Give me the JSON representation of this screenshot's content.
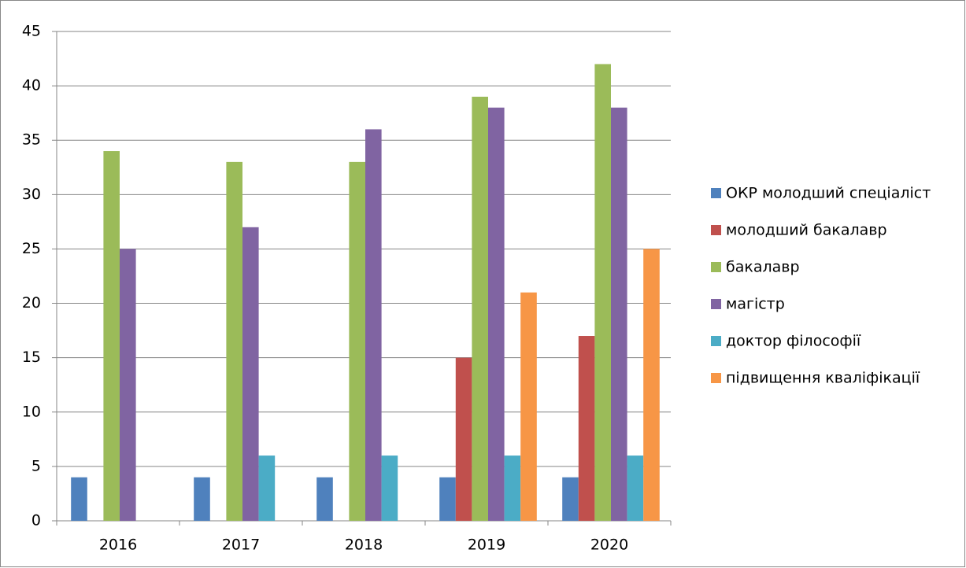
{
  "chart_data": {
    "type": "bar",
    "categories": [
      "2016",
      "2017",
      "2018",
      "2019",
      "2020"
    ],
    "series": [
      {
        "name": "ОКР молодший спеціаліст",
        "color": "#4f81bd",
        "values": [
          4,
          4,
          4,
          4,
          4
        ]
      },
      {
        "name": "молодший бакалавр",
        "color": "#c0504d",
        "values": [
          0,
          0,
          0,
          15,
          17
        ]
      },
      {
        "name": "бакалавр",
        "color": "#9bbb59",
        "values": [
          34,
          33,
          33,
          39,
          42
        ]
      },
      {
        "name": "магістр",
        "color": "#8064a2",
        "values": [
          25,
          27,
          36,
          38,
          38
        ]
      },
      {
        "name": "доктор філософії",
        "color": "#4bacc6",
        "values": [
          0,
          6,
          6,
          6,
          6
        ]
      },
      {
        "name": "підвищення кваліфікації",
        "color": "#f79646",
        "values": [
          0,
          0,
          0,
          21,
          25
        ]
      }
    ],
    "ylim": [
      0,
      45
    ],
    "yticks": [
      0,
      5,
      10,
      15,
      20,
      25,
      30,
      35,
      40,
      45
    ],
    "grid": true,
    "legend": "right"
  }
}
